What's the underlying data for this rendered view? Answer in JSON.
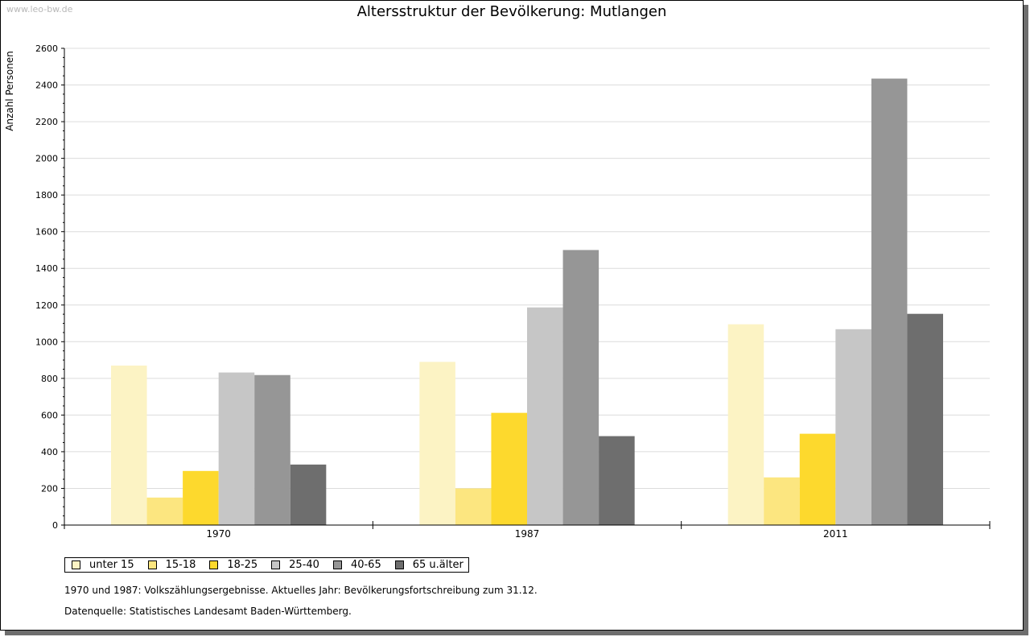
{
  "watermark": "www.leo-bw.de",
  "notes": {
    "line1": "1970 und 1987: Volkszählungsergebnisse. Aktuelles Jahr: Bevölkerungsfortschreibung zum 31.12.",
    "line2": "Datenquelle: Statistisches Landesamt Baden-Württemberg."
  },
  "chart_data": {
    "type": "bar",
    "title": "Altersstruktur der Bevölkerung: Mutlangen",
    "xlabel": "",
    "ylabel": "Anzahl Personen",
    "ylim": [
      0,
      2600
    ],
    "yticks": [
      "0",
      "200",
      "400",
      "600",
      "800",
      "1000",
      "1200",
      "1400",
      "1600",
      "1800",
      "2000",
      "2200",
      "2400",
      "2600"
    ],
    "grid": true,
    "legend_position": "bottom-left",
    "categories": [
      "1970",
      "1987",
      "2011"
    ],
    "series": [
      {
        "name": "unter 15",
        "color": "#fcf3c4",
        "values": [
          870,
          890,
          1095
        ]
      },
      {
        "name": "15-18",
        "color": "#fce680",
        "values": [
          150,
          200,
          260
        ]
      },
      {
        "name": "18-25",
        "color": "#fdd92d",
        "values": [
          295,
          612,
          498
        ]
      },
      {
        "name": "25-40",
        "color": "#c6c6c6",
        "values": [
          832,
          1187,
          1068
        ]
      },
      {
        "name": "40-65",
        "color": "#969696",
        "values": [
          818,
          1500,
          2435
        ]
      },
      {
        "name": "65 u.älter",
        "color": "#6e6e6e",
        "values": [
          330,
          485,
          1152
        ]
      }
    ]
  }
}
